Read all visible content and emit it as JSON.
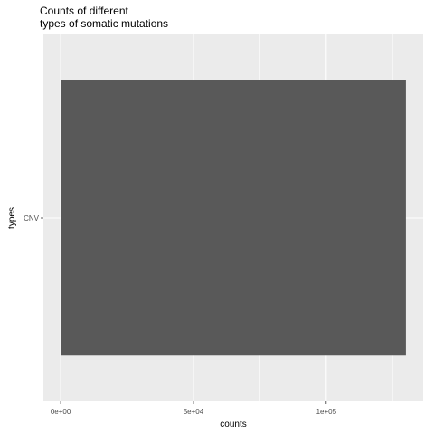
{
  "chart_data": {
    "type": "bar",
    "orientation": "horizontal",
    "title": [
      "Counts of different",
      "types of somatic mutations"
    ],
    "xlabel": "counts",
    "ylabel": "types",
    "categories": [
      "CNV"
    ],
    "values": [
      130000
    ],
    "xlim": [
      -6500,
      136500
    ],
    "x_ticks": [
      {
        "value": 0,
        "label": "0e+00"
      },
      {
        "value": 50000,
        "label": "5e+04"
      },
      {
        "value": 100000,
        "label": "1e+05"
      }
    ],
    "x_minor_ticks": [
      25000,
      75000,
      125000
    ],
    "grid": true,
    "legend": "none",
    "colors": {
      "panel": "#ebebeb",
      "grid": "#ffffff",
      "bar": "#595959",
      "tick": "#333333"
    }
  }
}
